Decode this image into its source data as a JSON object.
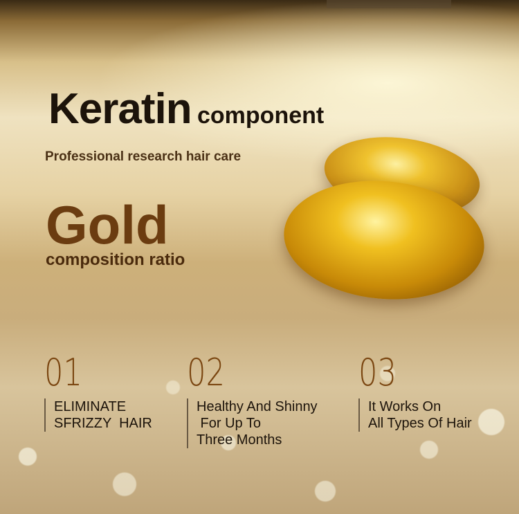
{
  "heading": {
    "title": "Keratin",
    "title_suffix": "component",
    "subtitle": "Professional research hair care",
    "highlight": "Gold",
    "highlight_sub": "composition ratio"
  },
  "features": [
    {
      "number": "01",
      "text": "ELIMINATE\nSFRIZZY  HAIR"
    },
    {
      "number": "02",
      "text": "Healthy And Shinny\n For Up To\nThree Months"
    },
    {
      "number": "03",
      "text": "It Works On\nAll Types Of Hair"
    }
  ],
  "colors": {
    "brand_brown": "#6b3c10",
    "capsule_gold": "#f0c020"
  }
}
